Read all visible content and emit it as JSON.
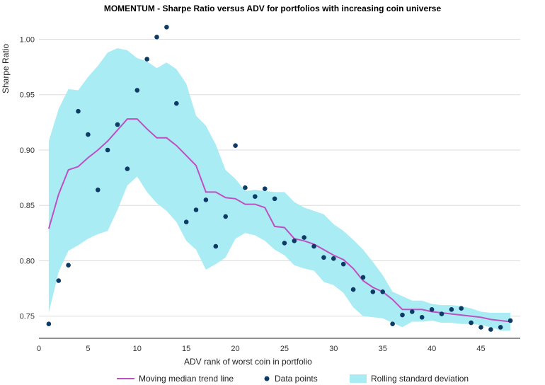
{
  "chart_data": {
    "type": "scatter",
    "title": "MOMENTUM - Sharpe Ratio versus ADV for portfolios with increasing coin universe",
    "xlabel": "ADV rank of worst coin in portfolio",
    "ylabel": "Sharpe Ratio",
    "xlim": [
      0,
      49
    ],
    "ylim": [
      0.73,
      1.015
    ],
    "x_ticks": [
      0,
      5,
      10,
      15,
      20,
      25,
      30,
      35,
      40,
      45
    ],
    "y_ticks": [
      0.75,
      0.8,
      0.85,
      0.9,
      0.95,
      1.0
    ],
    "x_tick_labels": [
      "0",
      "5",
      "10",
      "15",
      "20",
      "25",
      "30",
      "35",
      "40",
      "45"
    ],
    "y_tick_labels": [
      "0.75",
      "0.80",
      "0.85",
      "0.90",
      "0.95",
      "1.00"
    ],
    "grid": "horizontal",
    "legend_position": "bottom",
    "colors": {
      "points": "#0d3b66",
      "trend": "#c04fc2",
      "band": "#a9ecf4",
      "grid": "#dddddd"
    },
    "series": [
      {
        "name": "Data points",
        "type": "scatter",
        "x": [
          1,
          2,
          3,
          4,
          5,
          6,
          7,
          8,
          9,
          10,
          11,
          12,
          13,
          14,
          15,
          16,
          17,
          18,
          19,
          20,
          21,
          22,
          23,
          24,
          25,
          26,
          27,
          28,
          29,
          30,
          31,
          32,
          33,
          34,
          35,
          36,
          37,
          38,
          39,
          40,
          41,
          42,
          43,
          44,
          45,
          46,
          47,
          48
        ],
        "y": [
          0.743,
          0.782,
          0.796,
          0.935,
          0.914,
          0.864,
          0.9,
          0.923,
          0.883,
          0.954,
          0.982,
          1.002,
          1.011,
          0.942,
          0.835,
          0.846,
          0.855,
          0.813,
          0.84,
          0.904,
          0.866,
          0.858,
          0.865,
          0.856,
          0.816,
          0.818,
          0.821,
          0.813,
          0.803,
          0.802,
          0.797,
          0.774,
          0.785,
          0.772,
          0.772,
          0.743,
          0.751,
          0.754,
          0.749,
          0.756,
          0.752,
          0.756,
          0.757,
          0.744,
          0.74,
          0.738,
          0.74,
          0.746
        ]
      },
      {
        "name": "Moving median trend line",
        "type": "line",
        "x": [
          1,
          2,
          3,
          4,
          5,
          6,
          7,
          8,
          9,
          10,
          11,
          12,
          13,
          14,
          15,
          16,
          17,
          18,
          19,
          20,
          21,
          22,
          23,
          24,
          25,
          26,
          27,
          28,
          29,
          30,
          31,
          32,
          33,
          34,
          35,
          36,
          37,
          38,
          39,
          40,
          41,
          42,
          43,
          44,
          45,
          46,
          47,
          48
        ],
        "y": [
          0.829,
          0.86,
          0.882,
          0.885,
          0.893,
          0.9,
          0.908,
          0.918,
          0.928,
          0.928,
          0.919,
          0.911,
          0.911,
          0.904,
          0.895,
          0.886,
          0.862,
          0.862,
          0.857,
          0.856,
          0.851,
          0.851,
          0.848,
          0.831,
          0.83,
          0.82,
          0.818,
          0.815,
          0.81,
          0.805,
          0.801,
          0.793,
          0.782,
          0.776,
          0.772,
          0.765,
          0.756,
          0.756,
          0.756,
          0.754,
          0.753,
          0.752,
          0.751,
          0.75,
          0.749,
          0.747,
          0.746,
          0.745
        ]
      },
      {
        "name": "Rolling standard deviation",
        "type": "area",
        "x": [
          1,
          2,
          3,
          4,
          5,
          6,
          7,
          8,
          9,
          10,
          11,
          12,
          13,
          14,
          15,
          16,
          17,
          18,
          19,
          20,
          21,
          22,
          23,
          24,
          25,
          26,
          27,
          28,
          29,
          30,
          31,
          32,
          33,
          34,
          35,
          36,
          37,
          38,
          39,
          40,
          41,
          42,
          43,
          44,
          45,
          46,
          47,
          48
        ],
        "upper": [
          0.908,
          0.937,
          0.955,
          0.954,
          0.966,
          0.976,
          0.988,
          0.992,
          0.99,
          0.983,
          0.98,
          0.974,
          0.979,
          0.973,
          0.96,
          0.931,
          0.922,
          0.905,
          0.882,
          0.874,
          0.863,
          0.864,
          0.863,
          0.862,
          0.862,
          0.853,
          0.848,
          0.845,
          0.842,
          0.833,
          0.827,
          0.819,
          0.81,
          0.799,
          0.787,
          0.772,
          0.768,
          0.764,
          0.764,
          0.761,
          0.76,
          0.76,
          0.759,
          0.757,
          0.754,
          0.753,
          0.753,
          0.753
        ],
        "lower": [
          0.753,
          0.79,
          0.809,
          0.814,
          0.82,
          0.824,
          0.827,
          0.846,
          0.868,
          0.876,
          0.862,
          0.852,
          0.845,
          0.835,
          0.818,
          0.81,
          0.792,
          0.797,
          0.803,
          0.82,
          0.825,
          0.823,
          0.818,
          0.81,
          0.805,
          0.796,
          0.793,
          0.791,
          0.781,
          0.778,
          0.771,
          0.758,
          0.75,
          0.749,
          0.748,
          0.744,
          0.74,
          0.745,
          0.745,
          0.746,
          0.744,
          0.744,
          0.743,
          0.743,
          0.742,
          0.74,
          0.737,
          0.737
        ]
      }
    ],
    "legend": [
      {
        "label": "Moving median trend line",
        "symbol": "line"
      },
      {
        "label": "Data points",
        "symbol": "dot"
      },
      {
        "label": "Rolling standard deviation",
        "symbol": "box"
      }
    ]
  }
}
